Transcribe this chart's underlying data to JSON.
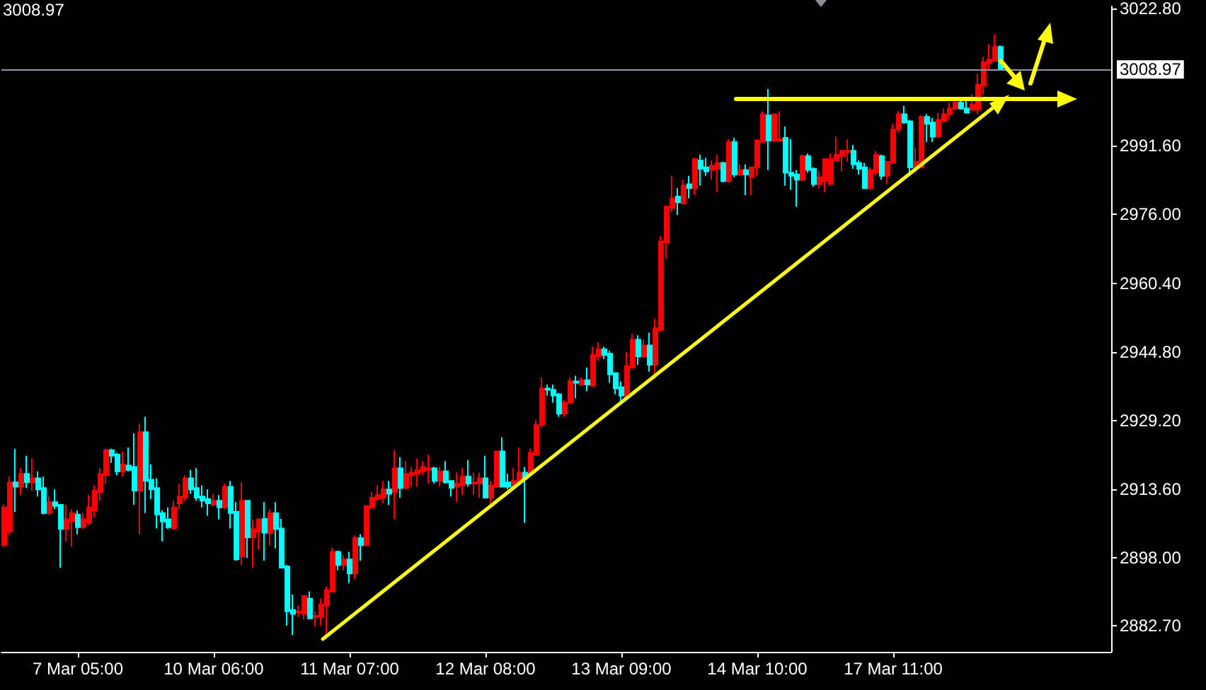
{
  "chart_data": {
    "type": "candlestick",
    "annotations": [
      "3008.97"
    ],
    "categories": [
      null,
      null,
      null,
      null,
      null,
      null,
      null,
      null,
      null,
      null,
      null,
      null,
      null,
      "7 Mar 05:00",
      null,
      null,
      null,
      null,
      null,
      null,
      null,
      null,
      null,
      null,
      null,
      null,
      null,
      null,
      null,
      null,
      null,
      null,
      null,
      null,
      null,
      null,
      null,
      "10 Mar 06:00",
      null,
      null,
      null,
      null,
      null,
      null,
      null,
      null,
      null,
      null,
      null,
      null,
      null,
      null,
      null,
      null,
      null,
      null,
      null,
      null,
      null,
      null,
      null,
      "11 Mar 07:00",
      null,
      null,
      null,
      null,
      null,
      null,
      null,
      null,
      null,
      null,
      null,
      null,
      null,
      null,
      null,
      null,
      null,
      null,
      null,
      null,
      null,
      null,
      null,
      "12 Mar 08:00",
      null,
      null,
      null,
      null,
      null,
      null,
      null,
      null,
      null,
      null,
      null,
      null,
      null,
      null,
      null,
      null,
      null,
      null,
      null,
      null,
      null,
      null,
      null,
      "13 Mar 09:00",
      null,
      null,
      null,
      null,
      null,
      null,
      null,
      null,
      null,
      null,
      null,
      null,
      null,
      null,
      null,
      null,
      null,
      null,
      null,
      null,
      null,
      null,
      null,
      "14 Mar 10:00",
      null,
      null,
      null,
      null,
      null,
      null,
      null,
      null,
      null,
      null,
      null,
      null,
      null,
      null,
      null,
      null,
      null,
      null,
      null,
      null,
      null,
      null,
      null,
      "17 Mar 11:00",
      null,
      null,
      null,
      null,
      null,
      null,
      null,
      null,
      null,
      null,
      null,
      null,
      null,
      null,
      null,
      null,
      null,
      null,
      null,
      null,
      null,
      null,
      null,
      null,
      null,
      null,
      null,
      null,
      null,
      null,
      null,
      null,
      null,
      null,
      null,
      null,
      null,
      null
    ],
    "ylim": [
      2876.7,
      3023.3
    ],
    "yticks": [
      {
        "value": 2882.7,
        "label": "2882.70"
      },
      {
        "value": 2898,
        "label": "2898.00"
      },
      {
        "value": 2913.6,
        "label": "2913.60"
      },
      {
        "value": 2929.2,
        "label": "2929.20"
      },
      {
        "value": 2944.8,
        "label": "2944.80"
      },
      {
        "value": 2960.4,
        "label": "2960.40"
      },
      {
        "value": 2976,
        "label": "2976.00"
      },
      {
        "value": 2991.6,
        "label": "2991.60"
      },
      {
        "value": 3022.8,
        "label": "3022.80"
      }
    ],
    "ref_lines": [
      {
        "axis": "y",
        "value": 3008.97,
        "label": "3008.97",
        "color": "#8a99a8"
      }
    ],
    "series": [
      {
        "ohlc": [
          [
            2900.9,
            2910.1,
            2900.6,
            2909.5
          ],
          [
            2904.0,
            2916.5,
            2903.1,
            2915.2
          ],
          [
            2915.2,
            2922.8,
            2908.5,
            2914.2
          ],
          [
            2914.2,
            2918.4,
            2912.3,
            2917.1
          ],
          [
            2917.1,
            2921.2,
            2913.9,
            2915.2
          ],
          [
            2915.2,
            2920.6,
            2913.3,
            2916.1
          ],
          [
            2916.1,
            2917.7,
            2912.0,
            2913.6
          ],
          [
            2913.9,
            2916.5,
            2907.9,
            2908.2
          ],
          [
            2908.2,
            2912.0,
            2907.9,
            2910.7
          ],
          [
            2910.7,
            2913.6,
            2909.1,
            2909.8
          ],
          [
            2910.1,
            2910.1,
            2895.8,
            2904.6
          ],
          [
            2904.6,
            2910.1,
            2901.8,
            2906.8
          ],
          [
            2906.3,
            2909.1,
            2900.6,
            2908.2
          ],
          [
            2907.9,
            2908.8,
            2903.4,
            2905.0
          ],
          [
            2905.0,
            2908.2,
            2904.6,
            2906.8
          ],
          [
            2906.0,
            2912.3,
            2905.6,
            2909.5
          ],
          [
            2908.8,
            2914.5,
            2907.2,
            2913.3
          ],
          [
            2913.0,
            2918.4,
            2911.0,
            2917.1
          ],
          [
            2916.8,
            2922.8,
            2914.9,
            2922.5
          ],
          [
            2922.5,
            2922.8,
            2919.6,
            2921.2
          ],
          [
            2921.5,
            2921.9,
            2916.8,
            2917.7
          ],
          [
            2917.7,
            2922.2,
            2916.5,
            2919.3
          ],
          [
            2919.0,
            2923.1,
            2917.7,
            2918.0
          ],
          [
            2918.7,
            2926.3,
            2910.1,
            2913.3
          ],
          [
            2913.3,
            2928.5,
            2903.4,
            2926.6
          ],
          [
            2926.6,
            2930.1,
            2908.2,
            2915.5
          ],
          [
            2915.8,
            2919.3,
            2911.4,
            2913.6
          ],
          [
            2913.9,
            2916.1,
            2904.7,
            2907.9
          ],
          [
            2908.2,
            2908.8,
            2901.8,
            2906.3
          ],
          [
            2906.8,
            2909.5,
            2904.6,
            2905.0
          ],
          [
            2904.7,
            2911.0,
            2904.7,
            2909.5
          ],
          [
            2910.4,
            2914.9,
            2909.1,
            2912.0
          ],
          [
            2911.7,
            2916.8,
            2911.0,
            2916.1
          ],
          [
            2916.1,
            2918.0,
            2912.6,
            2913.6
          ],
          [
            2913.9,
            2918.4,
            2911.0,
            2911.7
          ],
          [
            2912.0,
            2914.5,
            2909.5,
            2911.0
          ],
          [
            2911.4,
            2913.6,
            2907.6,
            2910.4
          ],
          [
            2910.1,
            2912.6,
            2909.8,
            2911.0
          ],
          [
            2911.0,
            2912.3,
            2906.8,
            2909.5
          ],
          [
            2909.5,
            2914.9,
            2909.1,
            2914.2
          ],
          [
            2914.2,
            2915.5,
            2904.7,
            2908.2
          ],
          [
            2908.5,
            2910.7,
            2897.4,
            2897.7
          ],
          [
            2898.3,
            2915.2,
            2896.4,
            2911.0
          ],
          [
            2911.0,
            2911.0,
            2898.0,
            2902.7
          ],
          [
            2902.7,
            2906.8,
            2895.8,
            2904.6
          ],
          [
            2904.0,
            2906.8,
            2899.9,
            2906.8
          ],
          [
            2906.9,
            2910.7,
            2897.4,
            2903.7
          ],
          [
            2903.7,
            2909.1,
            2900.9,
            2908.2
          ],
          [
            2908.2,
            2910.7,
            2900.2,
            2904.6
          ],
          [
            2904.7,
            2906.9,
            2895.8,
            2895.8
          ],
          [
            2896.1,
            2896.4,
            2882.7,
            2885.9
          ],
          [
            2886.2,
            2889.7,
            2880.5,
            2885.3
          ],
          [
            2885.6,
            2887.2,
            2884.6,
            2885.9
          ],
          [
            2885.3,
            2889.4,
            2884.0,
            2889.4
          ],
          [
            2888.8,
            2890.4,
            2884.3,
            2884.3
          ],
          [
            2884.6,
            2885.9,
            2882.4,
            2884.9
          ],
          [
            2884.6,
            2888.8,
            2882.7,
            2887.5
          ],
          [
            2887.2,
            2891.6,
            2879.6,
            2890.7
          ],
          [
            2890.4,
            2900.3,
            2890.1,
            2899.4
          ],
          [
            2899.4,
            2899.7,
            2895.2,
            2896.4
          ],
          [
            2896.4,
            2898.6,
            2895.2,
            2897.7
          ],
          [
            2897.7,
            2899.4,
            2892.3,
            2894.5
          ],
          [
            2894.5,
            2903.1,
            2893.2,
            2902.5
          ],
          [
            2902.5,
            2903.4,
            2897.4,
            2900.9
          ],
          [
            2900.9,
            2909.8,
            2900.9,
            2909.8
          ],
          [
            2909.5,
            2913.0,
            2909.1,
            2911.7
          ],
          [
            2911.4,
            2914.5,
            2911.0,
            2912.3
          ],
          [
            2911.7,
            2915.5,
            2910.4,
            2913.6
          ],
          [
            2913.6,
            2915.5,
            2910.1,
            2912.6
          ],
          [
            2913.0,
            2922.5,
            2906.8,
            2918.4
          ],
          [
            2918.4,
            2920.9,
            2911.7,
            2913.9
          ],
          [
            2913.9,
            2920.0,
            2913.6,
            2917.1
          ],
          [
            2916.8,
            2918.7,
            2914.2,
            2917.4
          ],
          [
            2917.1,
            2920.6,
            2914.2,
            2918.0
          ],
          [
            2917.7,
            2920.0,
            2916.8,
            2918.7
          ],
          [
            2918.0,
            2921.5,
            2914.9,
            2918.4
          ],
          [
            2918.4,
            2918.7,
            2914.9,
            2915.5
          ],
          [
            2915.5,
            2918.7,
            2914.2,
            2917.7
          ],
          [
            2917.7,
            2920.0,
            2914.9,
            2915.2
          ],
          [
            2915.5,
            2915.5,
            2912.0,
            2913.9
          ],
          [
            2914.2,
            2917.4,
            2910.7,
            2914.9
          ],
          [
            2914.5,
            2918.4,
            2912.3,
            2916.5
          ],
          [
            2916.5,
            2920.3,
            2914.2,
            2914.9
          ],
          [
            2914.9,
            2917.4,
            2912.3,
            2915.2
          ],
          [
            2914.9,
            2917.4,
            2911.7,
            2916.1
          ],
          [
            2916.1,
            2921.2,
            2911.7,
            2911.7
          ],
          [
            2911.7,
            2915.5,
            2909.5,
            2914.5
          ],
          [
            2914.2,
            2922.2,
            2914.2,
            2922.2
          ],
          [
            2922.2,
            2925.4,
            2914.2,
            2914.2
          ],
          [
            2915.2,
            2917.1,
            2913.6,
            2914.2
          ],
          [
            2914.2,
            2918.4,
            2913.6,
            2915.5
          ],
          [
            2915.2,
            2923.1,
            2914.9,
            2917.4
          ],
          [
            2917.4,
            2918.7,
            2906.0,
            2916.1
          ],
          [
            2917.1,
            2922.8,
            2916.8,
            2921.9
          ],
          [
            2921.5,
            2929.2,
            2921.2,
            2928.2
          ],
          [
            2928.2,
            2939.0,
            2927.6,
            2936.5
          ],
          [
            2936.5,
            2937.4,
            2934.9,
            2936.2
          ],
          [
            2936.2,
            2937.4,
            2933.3,
            2934.9
          ],
          [
            2935.2,
            2935.5,
            2930.1,
            2930.8
          ],
          [
            2930.8,
            2933.9,
            2930.1,
            2933.3
          ],
          [
            2933.3,
            2939.0,
            2933.0,
            2938.1
          ],
          [
            2938.1,
            2939.4,
            2934.3,
            2937.8
          ],
          [
            2937.4,
            2939.0,
            2937.1,
            2938.4
          ],
          [
            2938.4,
            2941.3,
            2935.9,
            2937.4
          ],
          [
            2937.1,
            2946.0,
            2937.1,
            2944.1
          ],
          [
            2943.8,
            2947.0,
            2942.8,
            2945.4
          ],
          [
            2945.4,
            2946.0,
            2943.2,
            2944.1
          ],
          [
            2944.4,
            2945.1,
            2937.8,
            2939.7
          ],
          [
            2940.0,
            2940.0,
            2935.2,
            2936.5
          ],
          [
            2936.8,
            2938.1,
            2933.3,
            2934.9
          ],
          [
            2934.6,
            2944.8,
            2934.6,
            2941.6
          ],
          [
            2941.3,
            2948.9,
            2940.9,
            2947.6
          ],
          [
            2947.6,
            2948.6,
            2941.9,
            2943.8
          ],
          [
            2943.8,
            2947.6,
            2943.5,
            2946.3
          ],
          [
            2946.3,
            2949.2,
            2940.3,
            2941.9
          ],
          [
            2941.9,
            2952.4,
            2938.7,
            2950.2
          ],
          [
            2949.8,
            2971.1,
            2949.5,
            2969.9
          ],
          [
            2969.6,
            2978.1,
            2966.1,
            2977.8
          ],
          [
            2977.5,
            2984.8,
            2976.6,
            2979.7
          ],
          [
            2980.1,
            2982.0,
            2975.9,
            2978.8
          ],
          [
            2978.5,
            2983.9,
            2978.5,
            2982.6
          ],
          [
            2982.9,
            2984.8,
            2979.7,
            2982.0
          ],
          [
            2982.0,
            2988.9,
            2980.4,
            2988.6
          ],
          [
            2988.3,
            2989.6,
            2982.6,
            2986.4
          ],
          [
            2986.7,
            2988.9,
            2984.8,
            2985.8
          ],
          [
            2986.1,
            2988.3,
            2983.9,
            2987.1
          ],
          [
            2986.4,
            2989.6,
            2981.0,
            2987.7
          ],
          [
            2987.7,
            2988.0,
            2983.3,
            2983.6
          ],
          [
            2983.6,
            2993.1,
            2983.3,
            2992.5
          ],
          [
            2992.5,
            2993.4,
            2984.5,
            2985.1
          ],
          [
            2985.1,
            2987.4,
            2984.8,
            2986.1
          ],
          [
            2986.1,
            2987.4,
            2980.4,
            2985.1
          ],
          [
            2984.5,
            2986.7,
            2980.4,
            2986.7
          ],
          [
            2986.7,
            2993.1,
            2984.8,
            2992.8
          ],
          [
            2992.5,
            2999.5,
            2992.5,
            2998.8
          ],
          [
            2998.5,
            3004.5,
            2986.1,
            2992.8
          ],
          [
            2992.8,
            2998.8,
            2992.5,
            2998.8
          ],
          [
            2992.8,
            2999.5,
            2992.5,
            2993.1
          ],
          [
            2993.4,
            2996.0,
            2982.6,
            2985.5
          ],
          [
            2985.5,
            2993.1,
            2981.6,
            2984.8
          ],
          [
            2985.1,
            2986.1,
            2977.8,
            2983.9
          ],
          [
            2983.9,
            2989.6,
            2983.6,
            2989.3
          ],
          [
            2989.3,
            2989.9,
            2985.5,
            2986.1
          ],
          [
            2986.4,
            2986.7,
            2982.3,
            2982.9
          ],
          [
            2982.9,
            2985.8,
            2982.0,
            2984.5
          ],
          [
            2983.6,
            2988.6,
            2981.0,
            2988.6
          ],
          [
            2982.9,
            2989.9,
            2982.9,
            2988.6
          ],
          [
            2988.3,
            2993.7,
            2988.0,
            2989.6
          ],
          [
            2989.3,
            2990.5,
            2985.8,
            2990.5
          ],
          [
            2990.2,
            2993.1,
            2988.0,
            2990.5
          ],
          [
            2990.5,
            2991.8,
            2986.4,
            2987.4
          ],
          [
            2987.7,
            2988.3,
            2985.1,
            2986.4
          ],
          [
            2986.7,
            2987.7,
            2982.0,
            2982.0
          ],
          [
            2982.0,
            2986.7,
            2981.6,
            2986.1
          ],
          [
            2985.5,
            2990.5,
            2984.8,
            2989.6
          ],
          [
            2989.3,
            2989.6,
            2983.9,
            2984.8
          ],
          [
            2984.8,
            2988.0,
            2982.9,
            2988.0
          ],
          [
            2987.7,
            2996.6,
            2987.7,
            2995.3
          ],
          [
            2995.3,
            2999.5,
            2994.7,
            2998.8
          ],
          [
            2998.8,
            3000.7,
            2996.6,
            2996.9
          ],
          [
            2997.2,
            2997.5,
            2984.8,
            2986.7
          ],
          [
            2986.7,
            2991.2,
            2985.5,
            2988.0
          ],
          [
            2986.7,
            2998.5,
            2986.7,
            2998.2
          ],
          [
            2998.2,
            2998.8,
            2992.5,
            2996.6
          ],
          [
            2996.9,
            2997.9,
            2992.5,
            2993.7
          ],
          [
            2993.7,
            2999.1,
            2993.7,
            2997.5
          ],
          [
            2997.2,
            3000.1,
            2996.9,
            2998.8
          ],
          [
            2998.8,
            3001.4,
            2997.5,
            3000.1
          ],
          [
            3000.1,
            3001.7,
            2999.8,
            3001.4
          ],
          [
            3001.4,
            3002.3,
            2999.8,
            3000.1
          ],
          [
            3000.1,
            3002.3,
            2999.1,
            2999.1
          ],
          [
            2999.8,
            3003.3,
            2999.5,
            3001.0
          ],
          [
            2999.8,
            3008.0,
            2998.8,
            3005.5
          ],
          [
            3005.2,
            3011.9,
            3003.3,
            3010.6
          ],
          [
            3010.3,
            3014.7,
            3009.0,
            3011.2
          ],
          [
            3010.9,
            3016.9,
            3010.9,
            3014.1
          ],
          [
            3014.1,
            3014.4,
            3008.7,
            3008.97
          ],
          null,
          null,
          null,
          null,
          null,
          null,
          null,
          null,
          null,
          null,
          null,
          null,
          null,
          null,
          null,
          null,
          null,
          null,
          null
        ],
        "colors": [
          "#ff0000",
          "#ff0000",
          "#00ffff",
          "#ff0000",
          "#00ffff",
          "#ff0000",
          "#00ffff",
          "#00ffff",
          "#ff0000",
          "#00ffff",
          "#00ffff",
          "#ff0000",
          "#ff0000",
          "#00ffff",
          "#ff0000",
          "#ff0000",
          "#ff0000",
          "#ff0000",
          "#ff0000",
          "#00ffff",
          "#00ffff",
          "#ff0000",
          "#00ffff",
          "#00ffff",
          "#ff0000",
          "#00ffff",
          "#00ffff",
          "#00ffff",
          "#00ffff",
          "#00ffff",
          "#ff0000",
          "#ff0000",
          "#ff0000",
          "#00ffff",
          "#00ffff",
          "#00ffff",
          "#00ffff",
          "#ff0000",
          "#00ffff",
          "#ff0000",
          "#00ffff",
          "#00ffff",
          "#ff0000",
          "#00ffff",
          "#ff0000",
          "#ff0000",
          "#00ffff",
          "#ff0000",
          "#00ffff",
          "#00ffff",
          "#00ffff",
          "#00ffff",
          "#ff0000",
          "#ff0000",
          "#00ffff",
          "#ff0000",
          "#ff0000",
          "#ff0000",
          "#ff0000",
          "#00ffff",
          "#ff0000",
          "#00ffff",
          "#ff0000",
          "#00ffff",
          "#ff0000",
          "#ff0000",
          "#ff0000",
          "#ff0000",
          "#00ffff",
          "#ff0000",
          "#00ffff",
          "#ff0000",
          "#ff0000",
          "#ff0000",
          "#ff0000",
          "#ff0000",
          "#00ffff",
          "#ff0000",
          "#00ffff",
          "#00ffff",
          "#ff0000",
          "#ff0000",
          "#00ffff",
          "#ff0000",
          "#ff0000",
          "#00ffff",
          "#ff0000",
          "#ff0000",
          "#00ffff",
          "#00ffff",
          "#ff0000",
          "#ff0000",
          "#00ffff",
          "#ff0000",
          "#ff0000",
          "#ff0000",
          "#00ffff",
          "#00ffff",
          "#00ffff",
          "#ff0000",
          "#ff0000",
          "#00ffff",
          "#ff0000",
          "#00ffff",
          "#ff0000",
          "#ff0000",
          "#00ffff",
          "#00ffff",
          "#00ffff",
          "#00ffff",
          "#ff0000",
          "#ff0000",
          "#00ffff",
          "#ff0000",
          "#00ffff",
          "#ff0000",
          "#ff0000",
          "#ff0000",
          "#ff0000",
          "#00ffff",
          "#ff0000",
          "#00ffff",
          "#ff0000",
          "#00ffff",
          "#00ffff",
          "#ff0000",
          "#ff0000",
          "#00ffff",
          "#ff0000",
          "#00ffff",
          "#ff0000",
          "#00ffff",
          "#ff0000",
          "#ff0000",
          "#ff0000",
          "#00ffff",
          "#ff0000",
          "#ff0000",
          "#00ffff",
          "#00ffff",
          "#00ffff",
          "#ff0000",
          "#00ffff",
          "#00ffff",
          "#ff0000",
          "#ff0000",
          "#ff0000",
          "#ff0000",
          "#ff0000",
          "#ff0000",
          "#00ffff",
          "#00ffff",
          "#00ffff",
          "#ff0000",
          "#ff0000",
          "#00ffff",
          "#ff0000",
          "#ff0000",
          "#ff0000",
          "#00ffff",
          "#00ffff",
          "#ff0000",
          "#ff0000",
          "#00ffff",
          "#00ffff",
          "#ff0000",
          "#ff0000",
          "#ff0000",
          "#ff0000",
          "#00ffff",
          "#00ffff",
          "#ff0000",
          "#ff0000",
          "#ff0000",
          "#ff0000",
          "#ff0000",
          "#00ffff",
          null,
          null,
          null,
          null,
          null,
          null,
          null,
          null,
          null,
          null,
          null,
          null,
          null,
          null,
          null,
          null,
          null,
          null,
          null
        ]
      }
    ]
  }
}
